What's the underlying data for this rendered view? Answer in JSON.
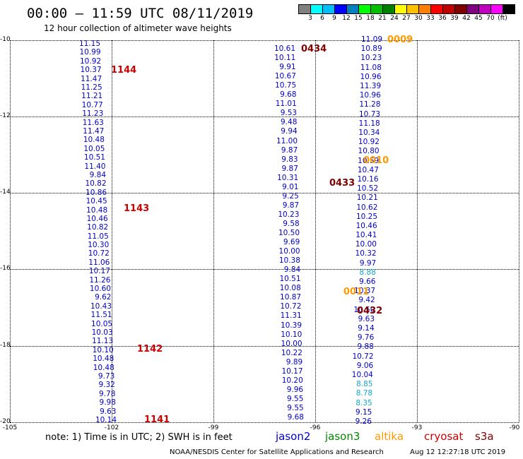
{
  "title": "00:00 – 11:59 UTC 08/11/2019",
  "subtitle": "12 hour collection of altimeter wave heights",
  "colorbar": {
    "colors": [
      "#808080",
      "#00ffff",
      "#00bfff",
      "#0000ff",
      "#0080c0",
      "#00ff00",
      "#00c000",
      "#008000",
      "#ffff00",
      "#ffc000",
      "#ff8000",
      "#ff0000",
      "#c00000",
      "#800000",
      "#800080",
      "#c000c0",
      "#ff00ff",
      "#000000"
    ],
    "labels": [
      "3",
      "6",
      "9",
      "12",
      "15",
      "18",
      "21",
      "24",
      "27",
      "30",
      "33",
      "36",
      "39",
      "42",
      "45",
      "70",
      "(ft)"
    ]
  },
  "y_axis_labels": [
    "-10",
    "-12",
    "-14",
    "-16",
    "-18",
    "-20"
  ],
  "x_axis_labels": [
    "-105",
    "-102",
    "-99",
    "-96",
    "-93",
    "-90"
  ],
  "tracks": [
    {
      "name": "left-track",
      "values": [
        "11.15",
        "10.99",
        "10.92",
        "10.37",
        "11.47",
        "11.25",
        "11.21",
        "10.77",
        "11.23",
        "11.63",
        "11.47",
        "10.48",
        "10.05",
        "10.51",
        "11.40",
        "9.84",
        "10.82",
        "10.86",
        "10.45",
        "10.48",
        "10.46",
        "10.82",
        "11.05",
        "10.30",
        "10.72",
        "11.06",
        "10.17",
        "11.26",
        "10.60",
        "9.62",
        "10.43",
        "11.51",
        "10.05",
        "10.03",
        "11.13",
        "10.10",
        "10.48",
        "10.48",
        "9.73",
        "9.32",
        "9.78",
        "9.98",
        "9.63",
        "10.14"
      ],
      "cyan": []
    },
    {
      "name": "middle-track",
      "values": [
        "10.61",
        "10.11",
        "9.91",
        "10.67",
        "10.75",
        "9.68",
        "11.01",
        "9.53",
        "9.48",
        "9.94",
        "11.00",
        "9.87",
        "9.83",
        "9.87",
        "10.31",
        "9.01",
        "9.25",
        "9.87",
        "10.23",
        "9.58",
        "10.50",
        "9.69",
        "10.00",
        "10.38",
        "9.84",
        "10.51",
        "10.08",
        "10.87",
        "10.72",
        "11.31",
        "10.39",
        "10.10",
        "10.00",
        "10.22",
        "9.89",
        "10.17",
        "10.20",
        "9.96",
        "9.55",
        "9.55",
        "9.68"
      ],
      "cyan": []
    },
    {
      "name": "right-track",
      "values": [
        "11.09",
        "10.89",
        "10.23",
        "11.08",
        "10.96",
        "11.39",
        "10.96",
        "11.28",
        "10.73",
        "11.18",
        "10.34",
        "10.92",
        "10.80",
        "10.59",
        "10.47",
        "10.16",
        "10.52",
        "10.21",
        "10.62",
        "10.25",
        "10.46",
        "10.41",
        "10.00",
        "10.32",
        "9.97",
        "8.88",
        "9.66",
        "10.37",
        "9.42",
        "10.50",
        "9.63",
        "9.14",
        "9.76",
        "9.88",
        "10.72",
        "9.06",
        "10.04",
        "8.85",
        "8.78",
        "8.35",
        "9.15",
        "9.26"
      ],
      "cyan": [
        25,
        37,
        38,
        39
      ]
    }
  ],
  "time_labels": [
    "1144",
    "1143",
    "1142",
    "1141",
    "0434",
    "0433",
    "0432",
    "0009",
    "0010",
    "0011"
  ],
  "time_colors": {
    "red": "#cc0000",
    "darkred": "#800000",
    "orange": "#ff9900"
  },
  "legend": {
    "note": "note:  1) Time is in UTC;  2) SWH is in feet",
    "satellites": [
      {
        "label": "jason2",
        "color": "#0000cc"
      },
      {
        "label": "jason3",
        "color": "#008800"
      },
      {
        "label": "altika",
        "color": "#ff9900"
      },
      {
        "label": "cryosat",
        "color": "#cc0000"
      },
      {
        "label": "s3a",
        "color": "#800000"
      }
    ]
  },
  "credit": "NOAA/NESDIS Center for Satellite Applications and Research",
  "generated": "Aug 12 12:27:18 UTC 2019"
}
